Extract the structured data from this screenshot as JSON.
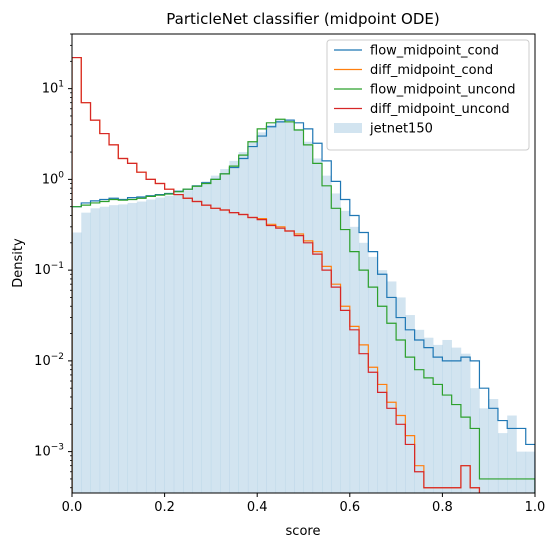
{
  "chart_data": {
    "type": "histogram",
    "title": "ParticleNet classifier (midpoint ODE)",
    "xlabel": "score",
    "ylabel": "Density",
    "xlim": [
      0.0,
      1.0
    ],
    "ylim": [
      0.00035,
      40
    ],
    "yscale": "log",
    "xticks": [
      "0.0",
      "0.2",
      "0.4",
      "0.6",
      "0.8",
      "1.0"
    ],
    "legend_position": "top-right",
    "bin_width": 0.02,
    "series": [
      {
        "name": "flow_midpoint_cond",
        "style": "step",
        "color": "#1f77b4",
        "values": [
          0.5,
          0.55,
          0.58,
          0.6,
          0.62,
          0.6,
          0.63,
          0.64,
          0.66,
          0.68,
          0.7,
          0.74,
          0.78,
          0.85,
          0.92,
          1.0,
          1.15,
          1.35,
          1.7,
          2.3,
          3.0,
          3.8,
          4.3,
          4.5,
          4.2,
          3.6,
          2.5,
          1.6,
          0.95,
          0.6,
          0.4,
          0.26,
          0.16,
          0.09,
          0.05,
          0.03,
          0.022,
          0.017,
          0.014,
          0.011,
          0.01,
          0.01,
          0.011,
          0.01,
          0.005,
          0.003,
          0.0022,
          0.0018,
          0.0018,
          0.0012
        ]
      },
      {
        "name": "diff_midpoint_cond",
        "style": "step",
        "color": "#ff7f0e",
        "values": [
          22.0,
          7.0,
          4.5,
          3.2,
          2.4,
          1.7,
          1.5,
          1.2,
          1.0,
          0.9,
          0.78,
          0.68,
          0.62,
          0.57,
          0.52,
          0.48,
          0.46,
          0.43,
          0.41,
          0.38,
          0.37,
          0.32,
          0.3,
          0.27,
          0.25,
          0.21,
          0.16,
          0.11,
          0.07,
          0.04,
          0.024,
          0.015,
          0.0085,
          0.0055,
          0.0035,
          0.0025,
          0.0015,
          0.0007,
          0.0004,
          0.0004,
          0.0004,
          0.0004,
          0.0007,
          0.0004,
          0.0003,
          0.0003,
          0.0003,
          0.0003,
          0.0003,
          0.0003
        ]
      },
      {
        "name": "flow_midpoint_uncond",
        "style": "step",
        "color": "#2ca02c",
        "values": [
          0.5,
          0.52,
          0.55,
          0.57,
          0.6,
          0.59,
          0.6,
          0.62,
          0.65,
          0.67,
          0.69,
          0.73,
          0.78,
          0.84,
          0.9,
          1.0,
          1.15,
          1.4,
          1.85,
          2.6,
          3.6,
          4.2,
          4.6,
          4.3,
          3.5,
          2.4,
          1.5,
          0.85,
          0.48,
          0.28,
          0.16,
          0.1,
          0.065,
          0.04,
          0.026,
          0.017,
          0.011,
          0.008,
          0.0065,
          0.0055,
          0.0042,
          0.0033,
          0.0024,
          0.0018,
          0.0005,
          0.0005,
          0.0005,
          0.0005,
          0.0005,
          0.0005
        ]
      },
      {
        "name": "diff_midpoint_uncond",
        "style": "step",
        "color": "#d62728",
        "values": [
          22.0,
          7.0,
          4.5,
          3.2,
          2.4,
          1.7,
          1.5,
          1.2,
          1.0,
          0.9,
          0.78,
          0.68,
          0.62,
          0.57,
          0.52,
          0.48,
          0.46,
          0.43,
          0.41,
          0.38,
          0.36,
          0.31,
          0.29,
          0.27,
          0.24,
          0.2,
          0.15,
          0.1,
          0.065,
          0.036,
          0.022,
          0.012,
          0.0075,
          0.0045,
          0.003,
          0.002,
          0.0012,
          0.0006,
          0.0004,
          0.0004,
          0.0004,
          0.0004,
          0.0007,
          0.0004,
          0.0003,
          0.0003,
          0.0003,
          0.0003,
          0.0003,
          0.0003
        ]
      },
      {
        "name": "jetnet150",
        "style": "filled",
        "color": "#1f77b4",
        "alpha": 0.2,
        "values": [
          0.26,
          0.43,
          0.48,
          0.5,
          0.52,
          0.53,
          0.55,
          0.57,
          0.6,
          0.63,
          0.66,
          0.7,
          0.76,
          0.84,
          0.95,
          1.1,
          1.3,
          1.6,
          2.0,
          2.6,
          3.3,
          4.0,
          4.5,
          4.2,
          3.6,
          2.6,
          1.7,
          1.1,
          0.7,
          0.45,
          0.3,
          0.2,
          0.14,
          0.1,
          0.075,
          0.05,
          0.032,
          0.022,
          0.018,
          0.015,
          0.017,
          0.014,
          0.012,
          0.005,
          0.003,
          0.0038,
          0.0016,
          0.0025,
          0.001,
          0.001
        ]
      }
    ]
  }
}
